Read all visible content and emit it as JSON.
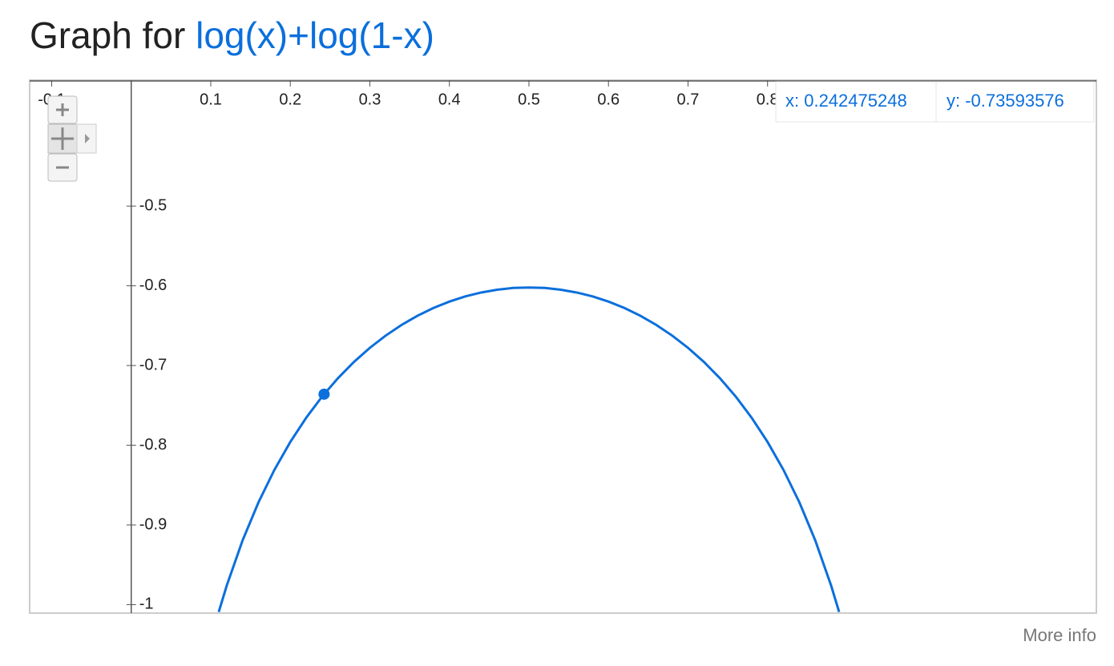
{
  "header": {
    "title": "Graph for",
    "expression": "log(x)+log(1-x)"
  },
  "readout": {
    "x": "x: 0.242475248",
    "y": "y: -0.73593576"
  },
  "footer": {
    "link": "More info"
  },
  "chart_data": {
    "type": "line",
    "x": [
      0.11,
      0.12,
      0.14,
      0.16,
      0.18,
      0.2,
      0.22,
      0.24,
      0.26,
      0.28,
      0.3,
      0.32,
      0.34,
      0.36,
      0.38,
      0.4,
      0.42,
      0.44,
      0.46,
      0.48,
      0.5,
      0.52,
      0.54,
      0.56,
      0.58,
      0.6,
      0.62,
      0.64,
      0.66,
      0.68,
      0.7,
      0.72,
      0.74,
      0.76,
      0.78,
      0.8,
      0.82,
      0.84,
      0.86,
      0.88,
      0.89
    ],
    "series": [
      {
        "name": "log(x)+log(1-x)",
        "color": "#0b6fdc",
        "values": [
          -1.0092,
          -0.9763,
          -0.9194,
          -0.8716,
          -0.8309,
          -0.7959,
          -0.7655,
          -0.7389,
          -0.7158,
          -0.6955,
          -0.6778,
          -0.6624,
          -0.649,
          -0.6375,
          -0.6278,
          -0.6198,
          -0.6133,
          -0.6084,
          -0.6049,
          -0.6027,
          -0.6021,
          -0.6027,
          -0.6049,
          -0.6084,
          -0.6133,
          -0.6198,
          -0.6278,
          -0.6375,
          -0.649,
          -0.6624,
          -0.6778,
          -0.6955,
          -0.7158,
          -0.7389,
          -0.7655,
          -0.7959,
          -0.8309,
          -0.8716,
          -0.9194,
          -0.9763,
          -1.0092
        ]
      }
    ],
    "marker": {
      "x": 0.242475248,
      "y": -0.73593576
    },
    "xlim": [
      -0.1277,
      1.2134
    ],
    "ylim": [
      -1.0106,
      -0.342
    ],
    "xticks": [
      -0.1,
      0.1,
      0.2,
      0.3,
      0.4,
      0.5,
      0.6,
      0.7,
      0.8
    ],
    "yticks": [
      -0.5,
      -0.6,
      -0.7,
      -0.8,
      -0.9,
      -1
    ]
  }
}
